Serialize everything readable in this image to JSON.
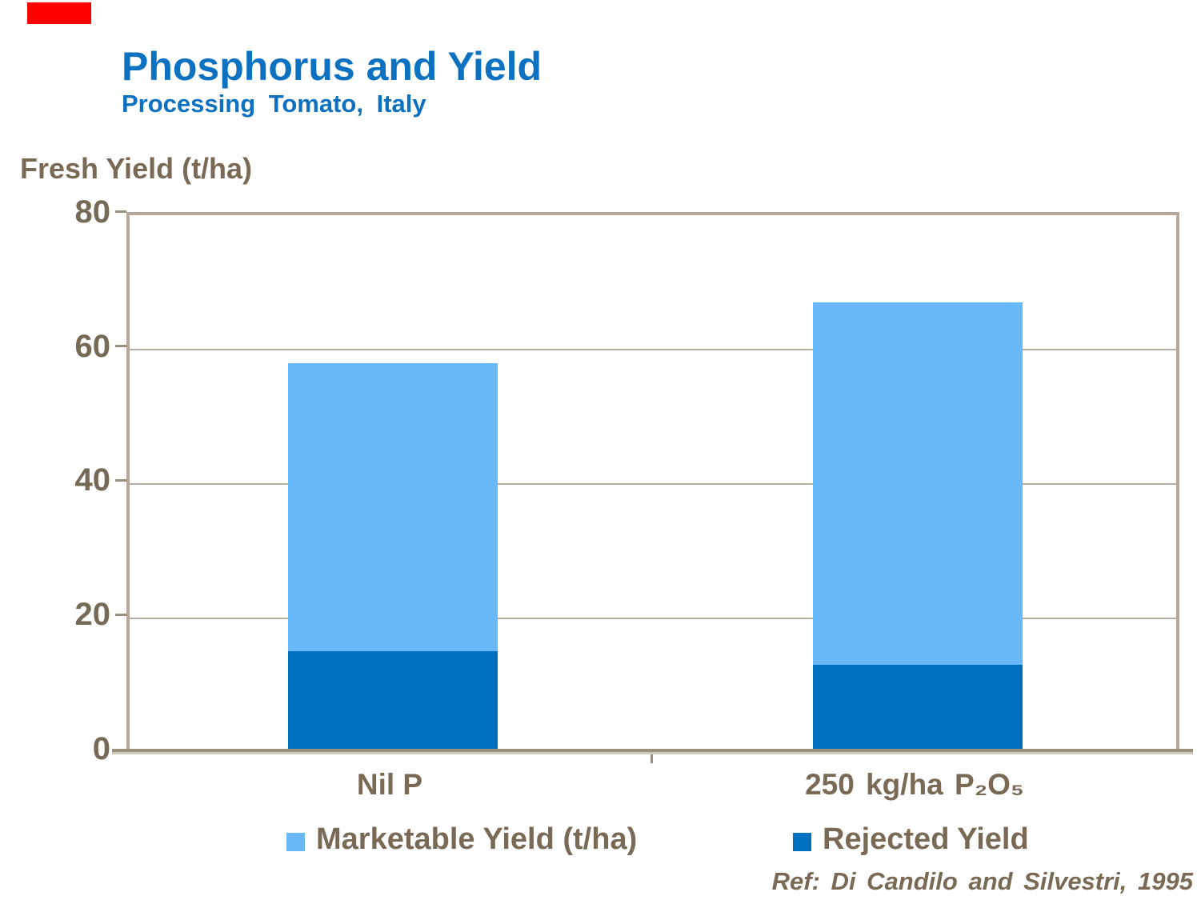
{
  "page": {
    "background": "#FFFFFF",
    "red_banner_color": "#FF0000",
    "title_color": "#0B71C0",
    "text_color": "#7A6A55",
    "frame_color": "#B3A89A"
  },
  "header": {
    "title": "Phosphorus and Yield",
    "subtitle": "Processing Tomato, Italy"
  },
  "footer": {
    "reference": "Ref: Di Candilo and Silvestri, 1995"
  },
  "chart_data": {
    "type": "bar",
    "stacked": true,
    "title": "Phosphorus and Yield",
    "subtitle": "Processing Tomato, Italy",
    "axis_title": "Fresh Yield (t/ha)",
    "categories": [
      "Nil P",
      "250 kg/ha P₂O₅"
    ],
    "series": [
      {
        "name": "Rejected Yield",
        "color": "#0070C0",
        "values": [
          15,
          13
        ]
      },
      {
        "name": "Marketable Yield (t/ha)",
        "color": "#68B8F7",
        "values": [
          43,
          54
        ]
      }
    ],
    "stack_totals": [
      58,
      67
    ],
    "ylim": [
      0,
      80
    ],
    "yticks": [
      0,
      20,
      40,
      60,
      80
    ],
    "grid": true,
    "legend_position": "bottom"
  },
  "legend": {
    "items": [
      {
        "label": "Marketable Yield (t/ha)",
        "color": "#68B8F7"
      },
      {
        "label": "Rejected Yield",
        "color": "#0070C0"
      }
    ]
  }
}
